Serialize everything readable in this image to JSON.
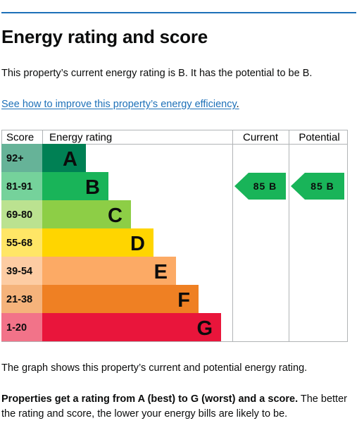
{
  "heading": "Energy rating and score",
  "intro": "This property’s current energy rating is B. It has the potential to be B.",
  "improve_link": "See how to improve this property’s energy efficiency",
  "improve_link_suffix": ".",
  "graph_note": "The graph shows this property’s current and potential energy rating.",
  "rating_note_bold": "Properties get a rating from A (best) to G (worst) and a score.",
  "rating_note_rest": " The better the rating and score, the lower your energy bills are likely to be.",
  "colors": {
    "link": "#1d70b8",
    "rule": "#1d70b8"
  },
  "chart_data": {
    "type": "table",
    "headers": {
      "score": "Score",
      "rating": "Energy rating",
      "current": "Current",
      "potential": "Potential"
    },
    "bands": [
      {
        "letter": "A",
        "range": "92+",
        "color": "#008054",
        "score_bg": "#66b398",
        "score_fg": "#0b0c0c",
        "letter_fg": "#0b0c0c"
      },
      {
        "letter": "B",
        "range": "81-91",
        "color": "#19b459",
        "score_bg": "#75d29b",
        "score_fg": "#0b0c0c",
        "letter_fg": "#0b0c0c"
      },
      {
        "letter": "C",
        "range": "69-80",
        "color": "#8dce46",
        "score_bg": "#bbe290",
        "score_fg": "#0b0c0c",
        "letter_fg": "#0b0c0c"
      },
      {
        "letter": "D",
        "range": "55-68",
        "color": "#ffd500",
        "score_bg": "#ffe666",
        "score_fg": "#0b0c0c",
        "letter_fg": "#0b0c0c"
      },
      {
        "letter": "E",
        "range": "39-54",
        "color": "#fcaa65",
        "score_bg": "#fdcca3",
        "score_fg": "#0b0c0c",
        "letter_fg": "#0b0c0c"
      },
      {
        "letter": "F",
        "range": "21-38",
        "color": "#ef8023",
        "score_bg": "#f5b37b",
        "score_fg": "#0b0c0c",
        "letter_fg": "#0b0c0c"
      },
      {
        "letter": "G",
        "range": "1-20",
        "color": "#e9153b",
        "score_bg": "#f27389",
        "score_fg": "#0b0c0c",
        "letter_fg": "#0b0c0c"
      }
    ],
    "current": {
      "score": 85,
      "letter": "B",
      "label": "85 B",
      "color": "#19b459"
    },
    "potential": {
      "score": 85,
      "letter": "B",
      "label": "85 B",
      "color": "#19b459"
    }
  }
}
